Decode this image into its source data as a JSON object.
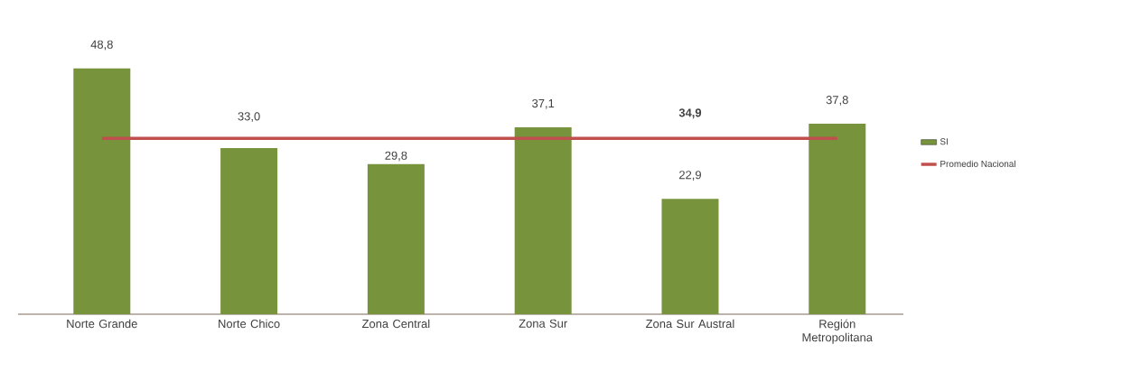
{
  "chart_data": {
    "type": "bar",
    "categories": [
      "Norte Grande",
      "Norte Chico",
      "Zona Central",
      "Zona Sur",
      "Zona Sur Austral",
      "Región Metropolitana"
    ],
    "series": [
      {
        "name": "SI",
        "color": "#77933c",
        "values": [
          48.8,
          33.0,
          29.8,
          37.1,
          22.9,
          37.8
        ],
        "value_labels": [
          "48,8",
          "33,0",
          "29,8",
          "37,1",
          "22,9",
          "37,8"
        ]
      },
      {
        "name": "Promedio Nacional",
        "type": "line",
        "color": "#c0504d",
        "values": [
          34.9,
          34.9,
          34.9,
          34.9,
          34.9,
          34.9
        ],
        "value_labels": [
          null,
          null,
          null,
          null,
          "34,9",
          null
        ]
      }
    ],
    "tick_labels": "x",
    "legend": "right",
    "grid": false
  }
}
